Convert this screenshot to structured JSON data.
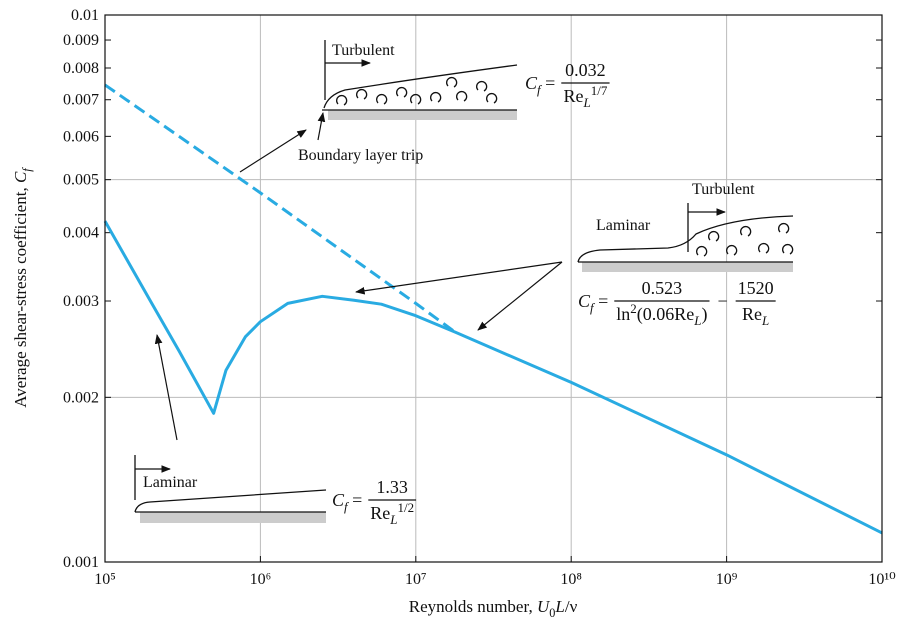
{
  "chart_data": {
    "type": "line",
    "xlabel": [
      {
        "text": "Reynolds number, "
      },
      {
        "italic": "U"
      },
      {
        "sub": "0"
      },
      {
        "italic": "L"
      },
      {
        "text": "/ν"
      }
    ],
    "ylabel": [
      {
        "text": "Average shear-stress coefficient, "
      },
      {
        "italic": "C"
      },
      {
        "isub": "f"
      }
    ],
    "x_log": true,
    "y_log": true,
    "xlim": [
      100000,
      10000000000
    ],
    "ylim": [
      0.001,
      0.01
    ],
    "xticks": [
      {
        "value": 100000,
        "label": "10⁵"
      },
      {
        "value": 1000000,
        "label": "10⁶"
      },
      {
        "value": 10000000,
        "label": "10⁷"
      },
      {
        "value": 100000000,
        "label": "10⁸"
      },
      {
        "value": 1000000000,
        "label": "10⁹"
      },
      {
        "value": 10000000000,
        "label": "10¹⁰"
      }
    ],
    "yticks": [
      0.001,
      0.002,
      0.003,
      0.004,
      0.005,
      0.006,
      0.007,
      0.008,
      0.009,
      0.01
    ],
    "xgrid": [
      1000000,
      10000000,
      100000000,
      1000000000
    ],
    "ygrid": [
      0.002,
      0.005
    ],
    "series": [
      {
        "color": "#29abe2",
        "dashed": false,
        "x": [
          100000,
          200000,
          300000,
          500000,
          600000,
          800000,
          1000000,
          1500000,
          2500000,
          4000000,
          6000000,
          10000000,
          18000000,
          100000000,
          1000000000,
          10000000000
        ],
        "values": [
          0.0042,
          0.00297,
          0.00243,
          0.00187,
          0.00224,
          0.00258,
          0.00275,
          0.00297,
          0.00306,
          0.00301,
          0.00296,
          0.00282,
          0.00263,
          0.00213,
          0.00157,
          0.00113
        ]
      },
      {
        "color": "#29abe2",
        "dashed": true,
        "x": [
          100000,
          1000000,
          10000000,
          18000000
        ],
        "values": [
          0.00745,
          0.00473,
          0.00297,
          0.00263
        ]
      }
    ],
    "annotations": [
      "Turbulent",
      "Boundary layer trip",
      "Turbulent",
      "Laminar",
      "Laminar"
    ],
    "formulas": [
      {
        "lhs": [
          {
            "italic": "C"
          },
          {
            "isub": "f"
          },
          {
            "text": " ="
          }
        ],
        "terms": [
          {
            "num": [
              {
                "text": "0.032"
              }
            ],
            "den": [
              {
                "text": "Re"
              },
              {
                "isub": "L"
              },
              {
                "sup": "1/7"
              }
            ]
          }
        ]
      },
      {
        "lhs": [
          {
            "italic": "C"
          },
          {
            "isub": "f"
          },
          {
            "text": " ="
          }
        ],
        "terms": [
          {
            "num": [
              {
                "text": "0.523"
              }
            ],
            "den": [
              {
                "text": "ln"
              },
              {
                "sup": "2"
              },
              {
                "text": "(0.06Re"
              },
              {
                "isub": "L"
              },
              {
                "text": ")"
              }
            ]
          },
          {
            "op": "−"
          },
          {
            "num": [
              {
                "text": "1520"
              }
            ],
            "den": [
              {
                "text": "Re"
              },
              {
                "isub": "L"
              }
            ]
          }
        ]
      },
      {
        "lhs": [
          {
            "italic": "C"
          },
          {
            "isub": "f"
          },
          {
            "text": " ="
          }
        ],
        "terms": [
          {
            "num": [
              {
                "text": "1.33"
              }
            ],
            "den": [
              {
                "text": "Re"
              },
              {
                "isub": "L"
              },
              {
                "sup": "1/2"
              }
            ]
          }
        ]
      }
    ]
  }
}
